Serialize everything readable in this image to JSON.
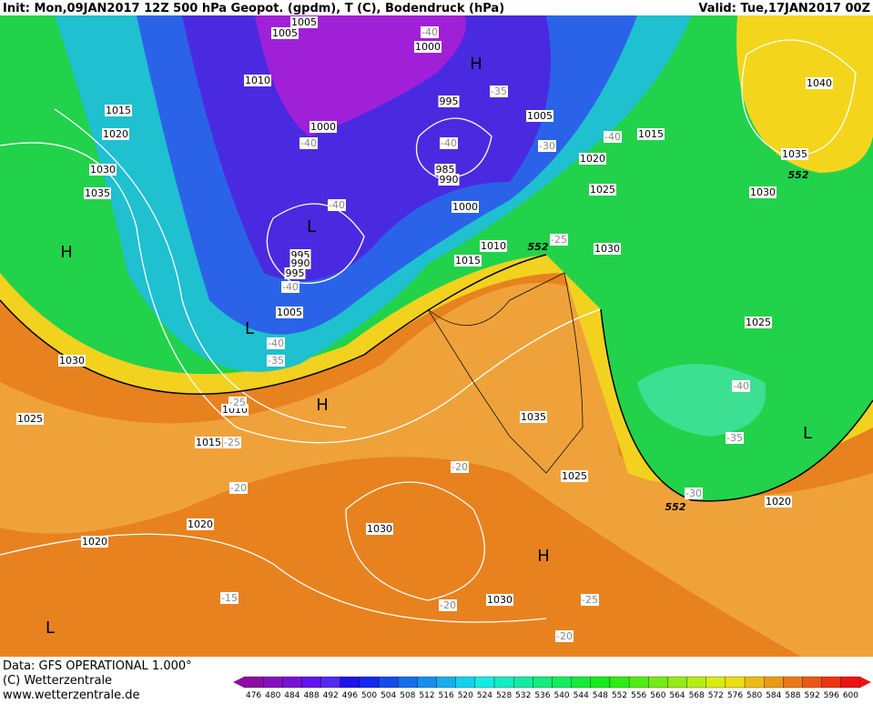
{
  "header": {
    "title": "Init: Mon,09JAN2017 12Z 500 hPa Geopot. (gpdm), T (C), Bodendruck (hPa)",
    "valid": "Valid: Tue,17JAN2017 00Z"
  },
  "footer": {
    "data": "Data: GFS OPERATIONAL 1.000°",
    "copyright": "(C) Wetterzentrale",
    "url": "www.wetterzentrale.de"
  },
  "isobar_labels": [
    "1005",
    "1005",
    "1000",
    "1010",
    "1015",
    "1020",
    "1000",
    "995",
    "1005",
    "1015",
    "1020",
    "1030",
    "1035",
    "985",
    "990",
    "1025",
    "1030",
    "1035",
    "1040",
    "1000",
    "1010",
    "1030",
    "995",
    "990",
    "995",
    "1015",
    "1005",
    "1025",
    "1030",
    "1010",
    "1015",
    "1025",
    "1035",
    "1020",
    "1020",
    "1030",
    "1025",
    "1020",
    "1030"
  ],
  "geopotential_labels": [
    "552",
    "552",
    "552"
  ],
  "temperature_labels": [
    "-40",
    "-35",
    "-40",
    "-40",
    "-30",
    "-40",
    "-40",
    "-25",
    "-40",
    "-40",
    "-35",
    "-25",
    "-25",
    "-20",
    "-20",
    "-15",
    "-20",
    "-25",
    "-20",
    "-40",
    "-35",
    "-30"
  ],
  "pressure_centers": [
    "H",
    "L",
    "H",
    "L",
    "H",
    "H",
    "L",
    "L"
  ],
  "colorbar": {
    "labels": [
      "476",
      "480",
      "484",
      "488",
      "492",
      "496",
      "500",
      "504",
      "508",
      "512",
      "516",
      "520",
      "524",
      "528",
      "532",
      "536",
      "540",
      "544",
      "548",
      "552",
      "556",
      "560",
      "564",
      "568",
      "572",
      "576",
      "580",
      "584",
      "588",
      "592",
      "596",
      "600"
    ]
  }
}
